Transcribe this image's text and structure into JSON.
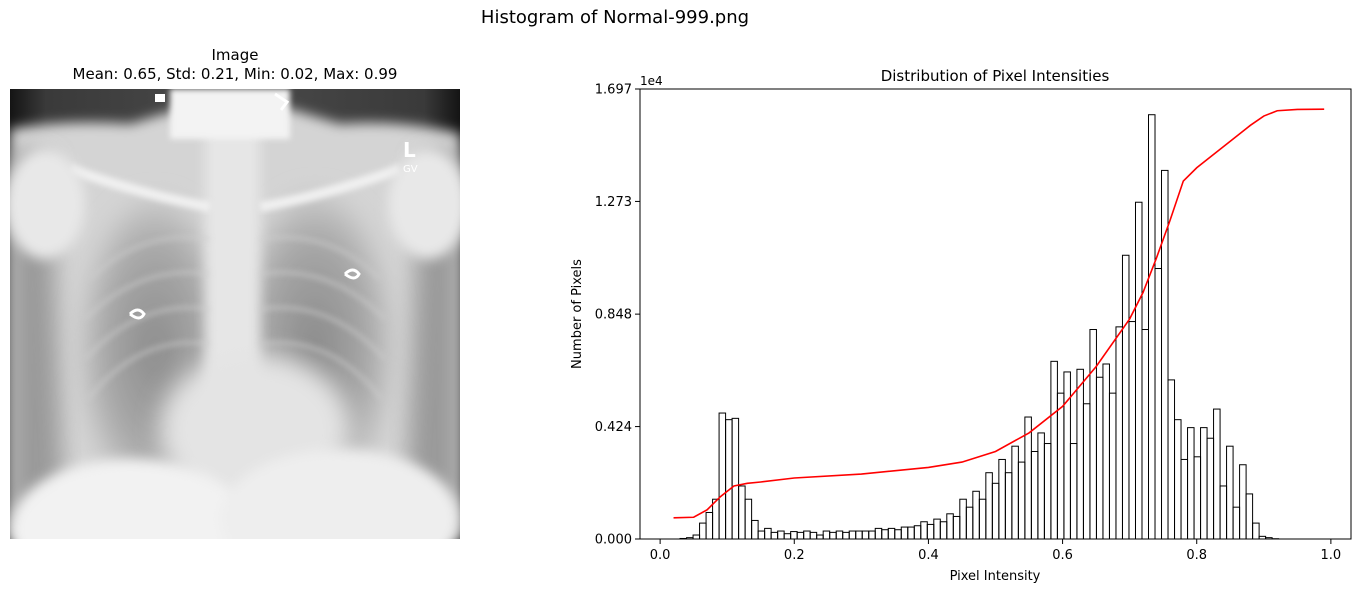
{
  "figure": {
    "suptitle": "Histogram of Normal-999.png"
  },
  "image_panel": {
    "title_line1": "Image",
    "title_line2": "Mean: 0.65, Std: 0.21, Min: 0.02, Max: 0.99",
    "marker_letters": "L",
    "marker_sub": "GV"
  },
  "chart_data": {
    "type": "histogram",
    "title": "Distribution of Pixel Intensities",
    "xlabel": "Pixel Intensity",
    "ylabel": "Number of Pixels",
    "offset_text": "1e4",
    "xlim": [
      -0.03,
      1.03
    ],
    "ylim": [
      0,
      16970
    ],
    "xticks": [
      0.0,
      0.2,
      0.4,
      0.6,
      0.8,
      1.0
    ],
    "xtick_labels": [
      "0.0",
      "0.2",
      "0.4",
      "0.6",
      "0.8",
      "1.0"
    ],
    "yticks": [
      0,
      4240,
      8480,
      12730,
      16970
    ],
    "ytick_labels": [
      "0.000",
      "0.424",
      "0.848",
      "1.273",
      "1.697"
    ],
    "bins": {
      "start": 0.02,
      "width": 0.0097,
      "counts": [
        0,
        20,
        50,
        150,
        600,
        1000,
        1500,
        4750,
        4500,
        4550,
        2000,
        1500,
        700,
        300,
        400,
        250,
        300,
        200,
        280,
        250,
        300,
        250,
        150,
        300,
        250,
        300,
        250,
        300,
        300,
        300,
        300,
        400,
        350,
        400,
        350,
        450,
        450,
        500,
        650,
        550,
        750,
        650,
        950,
        850,
        1500,
        1200,
        1800,
        1500,
        2500,
        2100,
        3000,
        2500,
        3500,
        2900,
        4600,
        3300,
        4000,
        3600,
        6700,
        5500,
        6300,
        3600,
        6400,
        5100,
        7900,
        6100,
        6600,
        5500,
        8000,
        10700,
        8200,
        12700,
        7900,
        16000,
        10200,
        13900,
        6000,
        4500,
        3000,
        4200,
        3100,
        4200,
        3800,
        4900,
        2000,
        3500,
        1200,
        2800,
        1700,
        600,
        100,
        50,
        10,
        0
      ]
    },
    "cdf": {
      "color": "#ff0000",
      "x": [
        0.02,
        0.05,
        0.07,
        0.09,
        0.11,
        0.13,
        0.15,
        0.2,
        0.3,
        0.4,
        0.45,
        0.5,
        0.55,
        0.6,
        0.65,
        0.7,
        0.72,
        0.74,
        0.76,
        0.78,
        0.8,
        0.82,
        0.85,
        0.88,
        0.9,
        0.92,
        0.95,
        0.99
      ],
      "y": [
        800,
        820,
        1100,
        1600,
        2000,
        2100,
        2150,
        2300,
        2450,
        2700,
        2900,
        3300,
        4000,
        5000,
        6500,
        8300,
        9300,
        10600,
        12000,
        13500,
        14000,
        14400,
        15000,
        15600,
        15950,
        16150,
        16200,
        16210
      ]
    },
    "bar_edge_color": "#000000"
  }
}
